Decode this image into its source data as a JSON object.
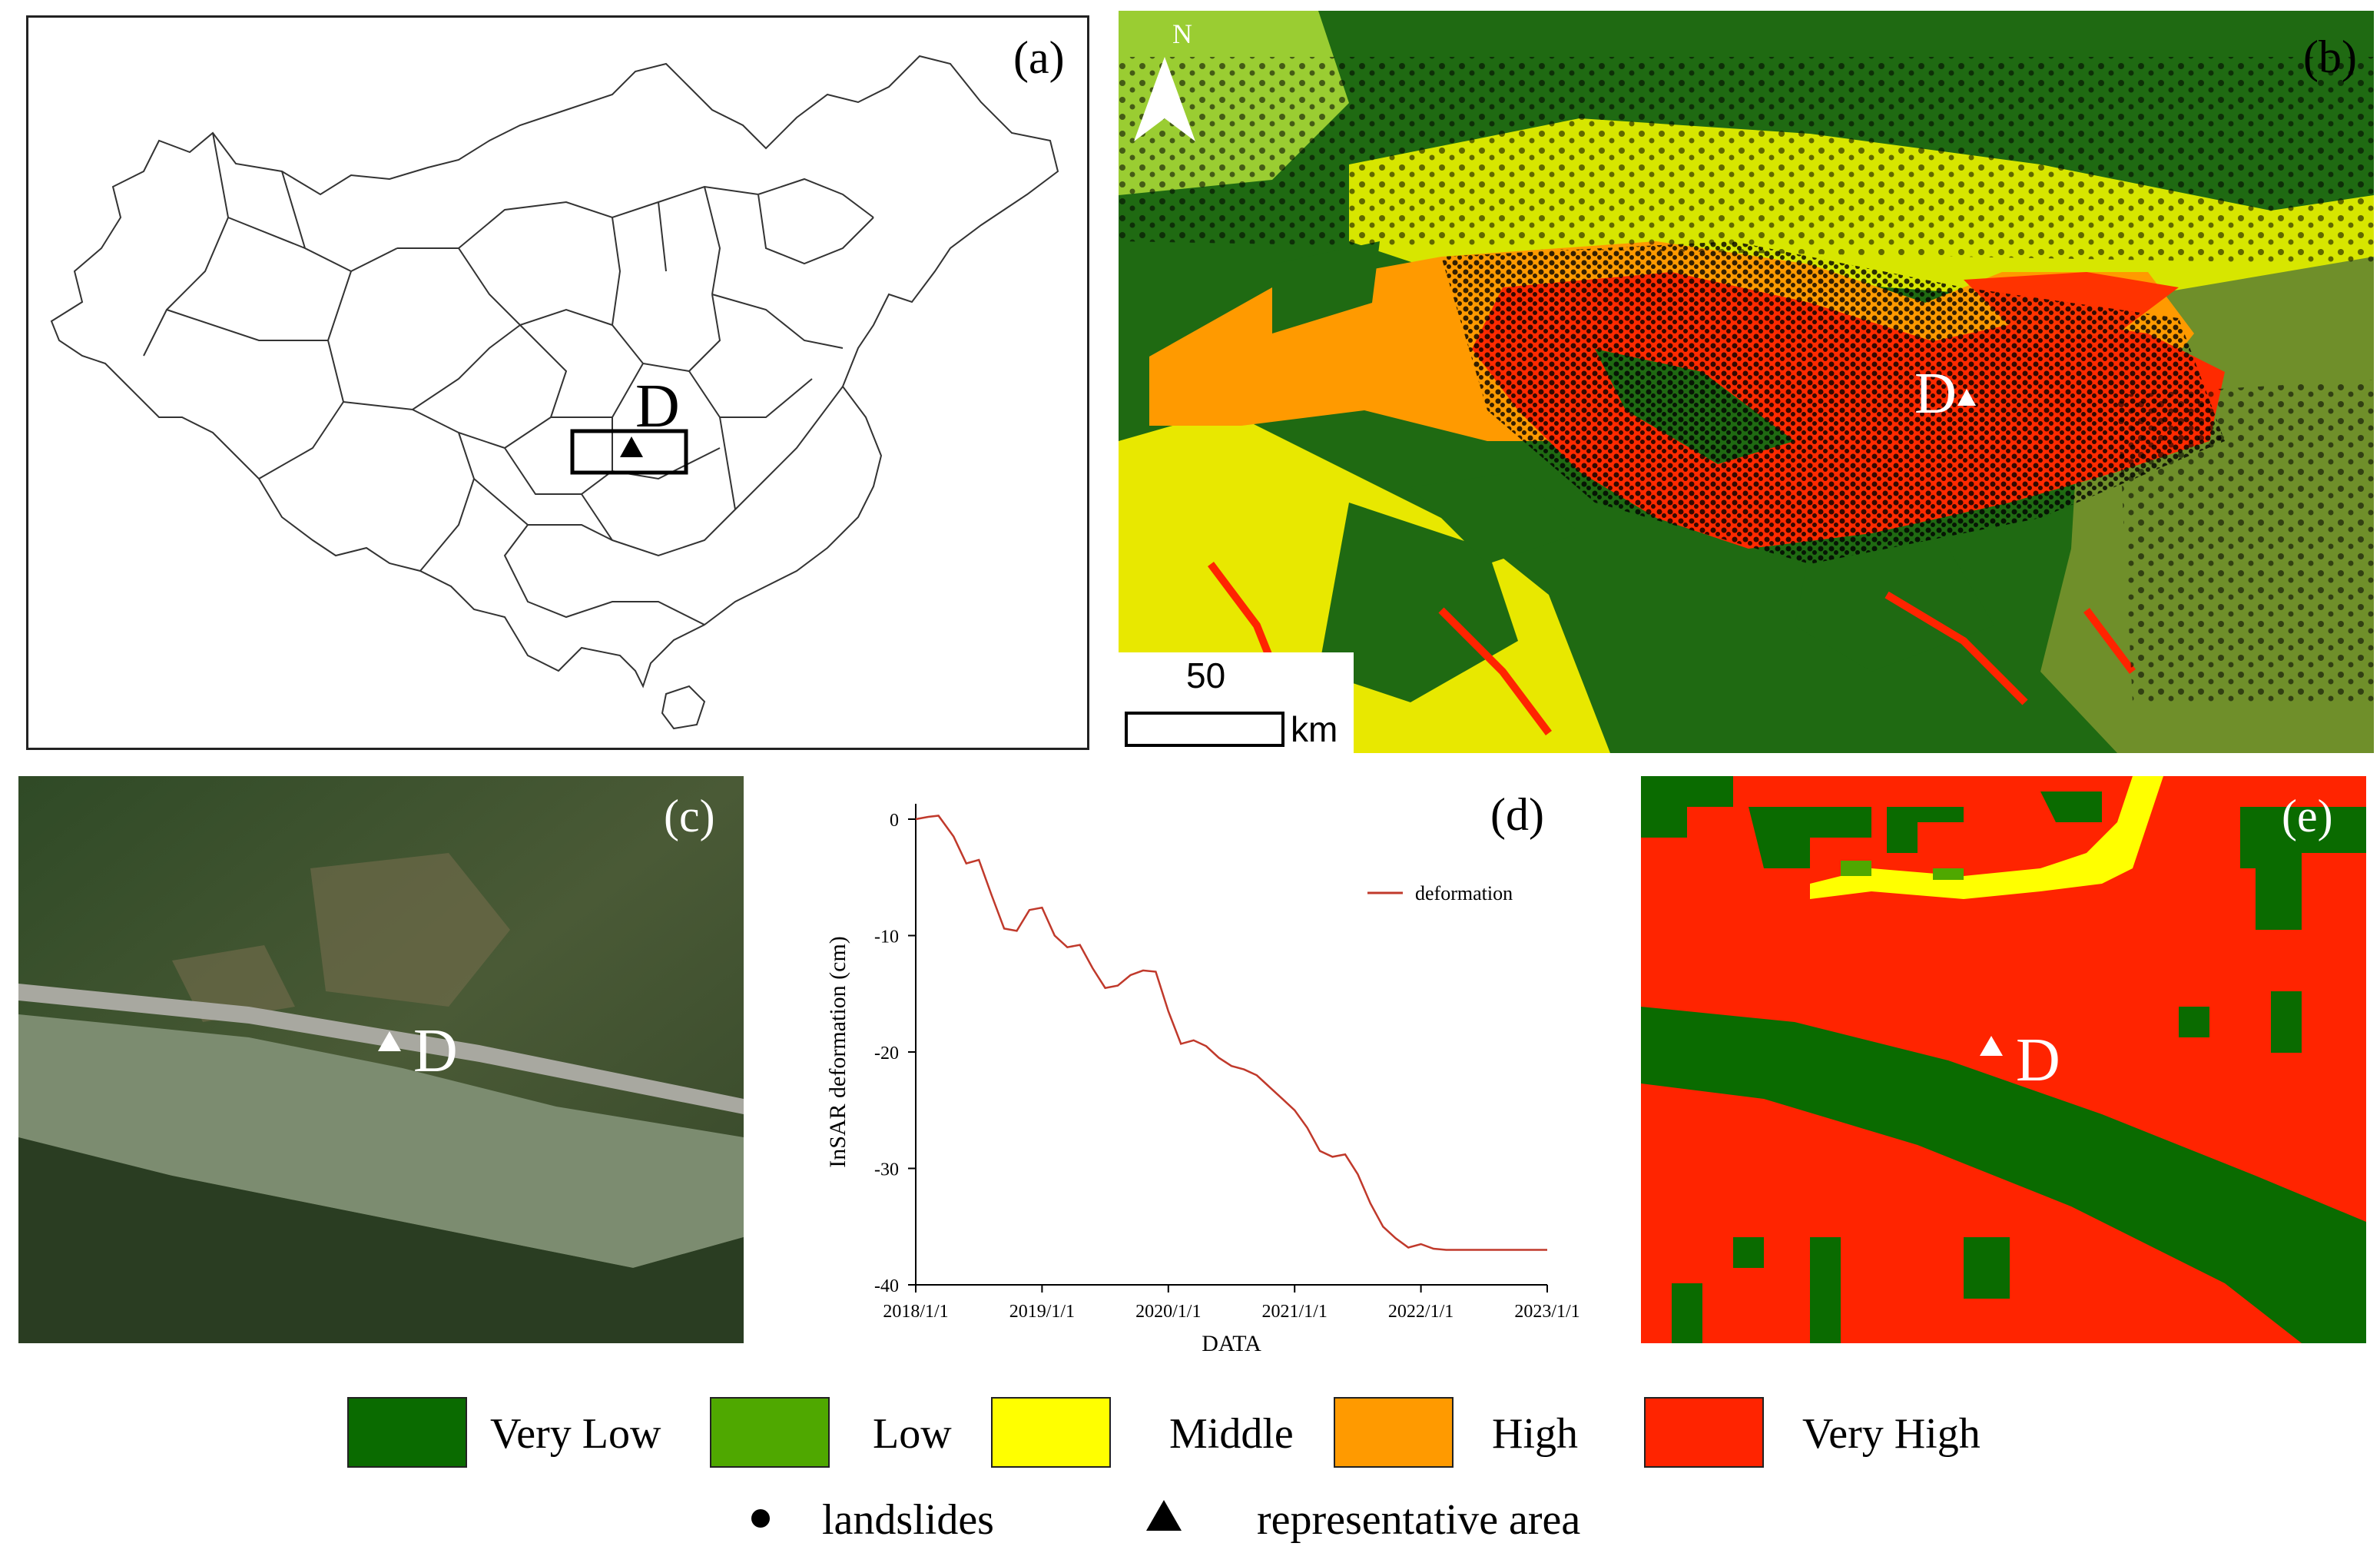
{
  "colors": {
    "very_low": "#0a6b00",
    "low": "#4fa800",
    "middle": "#ffff00",
    "high": "#ff9a00",
    "very_high": "#ff2400",
    "deformation_line": "#c0392b"
  },
  "panel_a": {
    "label": "(a)",
    "site_label": "D",
    "icons": [
      "triangle-marker-icon",
      "study-area-box"
    ]
  },
  "panel_b": {
    "label": "(b)",
    "north_label": "N",
    "site_label": "D",
    "scale_value": "50",
    "scale_unit": "km"
  },
  "panel_c": {
    "label": "(c)",
    "site_label": "D"
  },
  "panel_d": {
    "label": "(d)",
    "legend_label": "deformation"
  },
  "panel_e": {
    "label": "(e)",
    "site_label": "D"
  },
  "legend": {
    "very_low": "Very Low",
    "low": "Low",
    "middle": "Middle",
    "high": "High",
    "very_high": "Very High",
    "landslides": "landslides",
    "representative_area": "representative area"
  },
  "chart_data": {
    "type": "line",
    "title": "",
    "xlabel": "DATA",
    "ylabel": "InSAR deformation (cm)",
    "xlim": [
      2018.0,
      2023.0
    ],
    "ylim": [
      -40,
      0
    ],
    "x_ticks": [
      "2018/1/1",
      "2019/1/1",
      "2020/1/1",
      "2021/1/1",
      "2022/1/1",
      "2023/1/1"
    ],
    "y_ticks": [
      "0",
      "-10",
      "-20",
      "-30",
      "-40"
    ],
    "y_tick_values": [
      0,
      -10,
      -20,
      -30,
      -40
    ],
    "series": [
      {
        "name": "deformation",
        "x": [
          2018.0,
          2018.1,
          2018.18,
          2018.3,
          2018.4,
          2018.5,
          2018.6,
          2018.7,
          2018.8,
          2018.9,
          2019.0,
          2019.1,
          2019.2,
          2019.3,
          2019.4,
          2019.5,
          2019.6,
          2019.7,
          2019.8,
          2019.9,
          2020.0,
          2020.1,
          2020.2,
          2020.3,
          2020.4,
          2020.5,
          2020.6,
          2020.7,
          2020.8,
          2020.9,
          2021.0,
          2021.1,
          2021.2,
          2021.3,
          2021.4,
          2021.5,
          2021.6,
          2021.7,
          2021.8,
          2021.9,
          2022.0,
          2022.1,
          2022.2,
          2022.3,
          2022.4,
          2022.5,
          2022.6,
          2022.7,
          2022.8,
          2022.9,
          2023.0
        ],
        "values": [
          0,
          0.2,
          0.3,
          -1.5,
          -3.8,
          -3.5,
          -6.5,
          -9.4,
          -9.6,
          -7.8,
          -7.6,
          -10.0,
          -11.0,
          -10.8,
          -12.8,
          -14.5,
          -14.3,
          -13.4,
          -13.0,
          -13.1,
          -16.5,
          -19.3,
          -19.0,
          -19.5,
          -20.5,
          -21.2,
          -21.5,
          -22.0,
          -23.0,
          -24.0,
          -25.0,
          -26.5,
          -28.5,
          -29.0,
          -28.8,
          -30.5,
          -33.0,
          -35.0,
          -36.0,
          -36.8,
          -36.5,
          -36.9,
          -37.0,
          -37.0,
          -37.0,
          -37.0,
          -37.0,
          -37.0,
          -37.0,
          -37.0,
          -37.0
        ]
      }
    ]
  }
}
